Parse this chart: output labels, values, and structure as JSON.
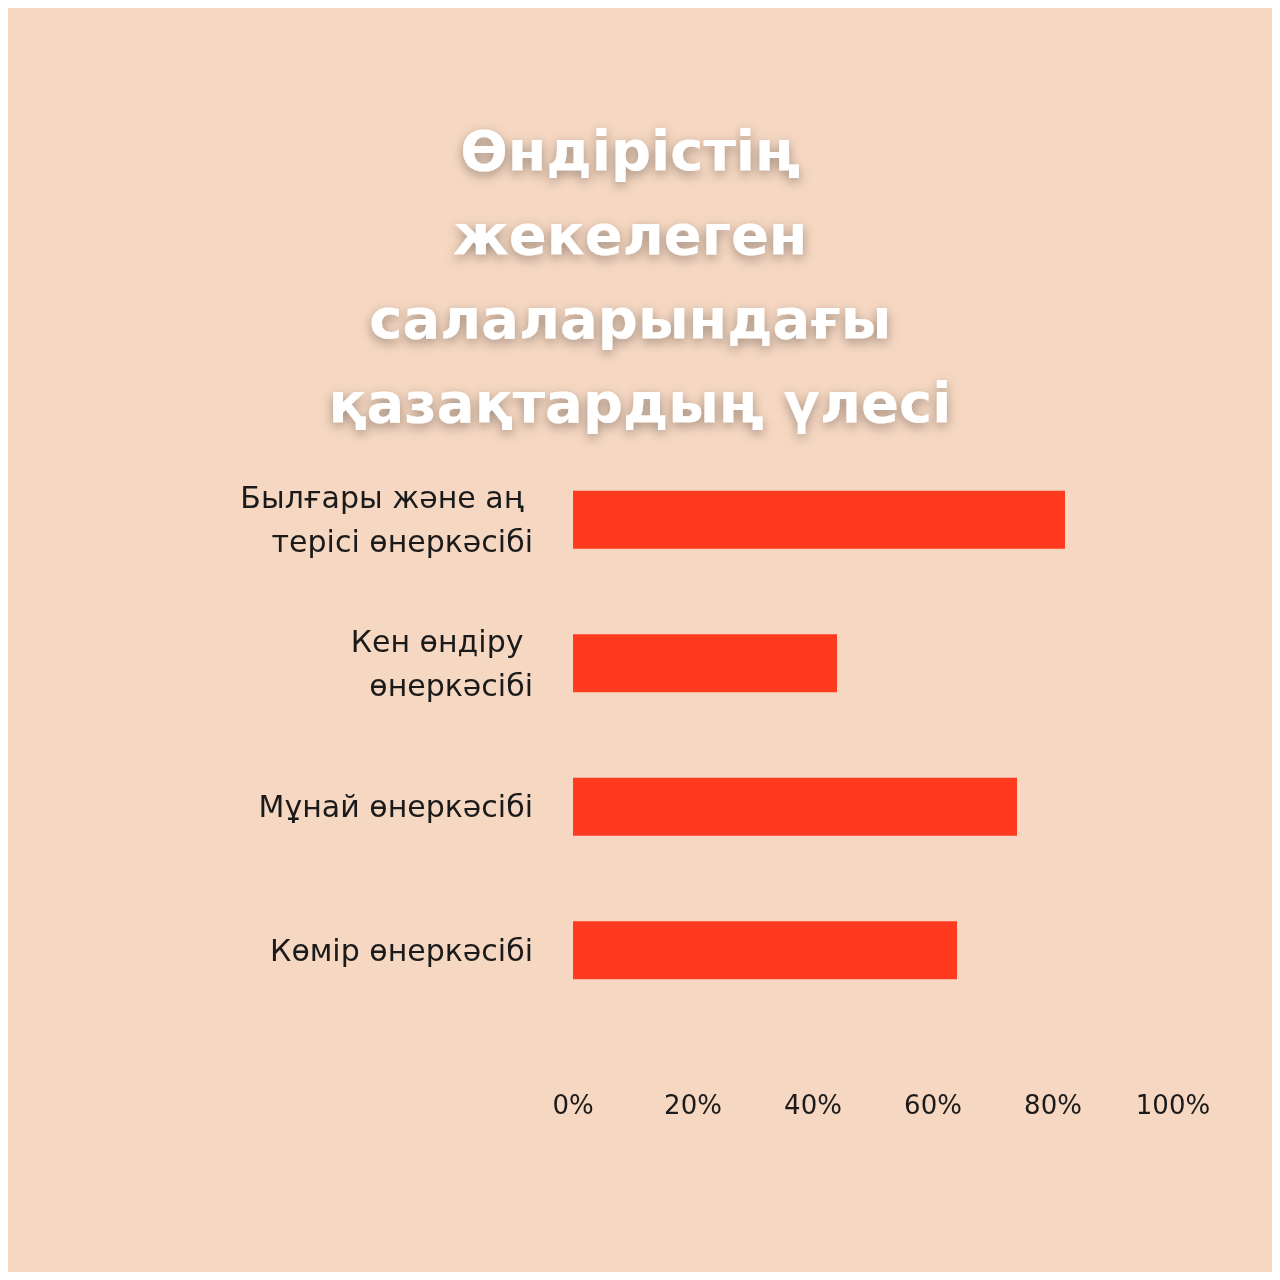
{
  "chart_data": {
    "type": "bar",
    "orientation": "horizontal",
    "title": "Өндірістің жекелеген салаларындағы қазақтардың үлесі",
    "categories": [
      "Былғары және аң терісі өнеркәсібі",
      "Кен өндіру өнеркәсібі",
      "Мұнай өнеркәсібі",
      "Көмір өнеркәсібі"
    ],
    "values": [
      82,
      44,
      74,
      64
    ],
    "color": "#ff3a1f",
    "xlim": [
      0,
      100
    ],
    "xticks": [
      {
        "value": 0,
        "label": "0%"
      },
      {
        "value": 20,
        "label": "20%"
      },
      {
        "value": 40,
        "label": "40%"
      },
      {
        "value": 60,
        "label": "60%"
      },
      {
        "value": 80,
        "label": "80%"
      },
      {
        "value": 100,
        "label": "100%"
      }
    ],
    "grid": false
  }
}
